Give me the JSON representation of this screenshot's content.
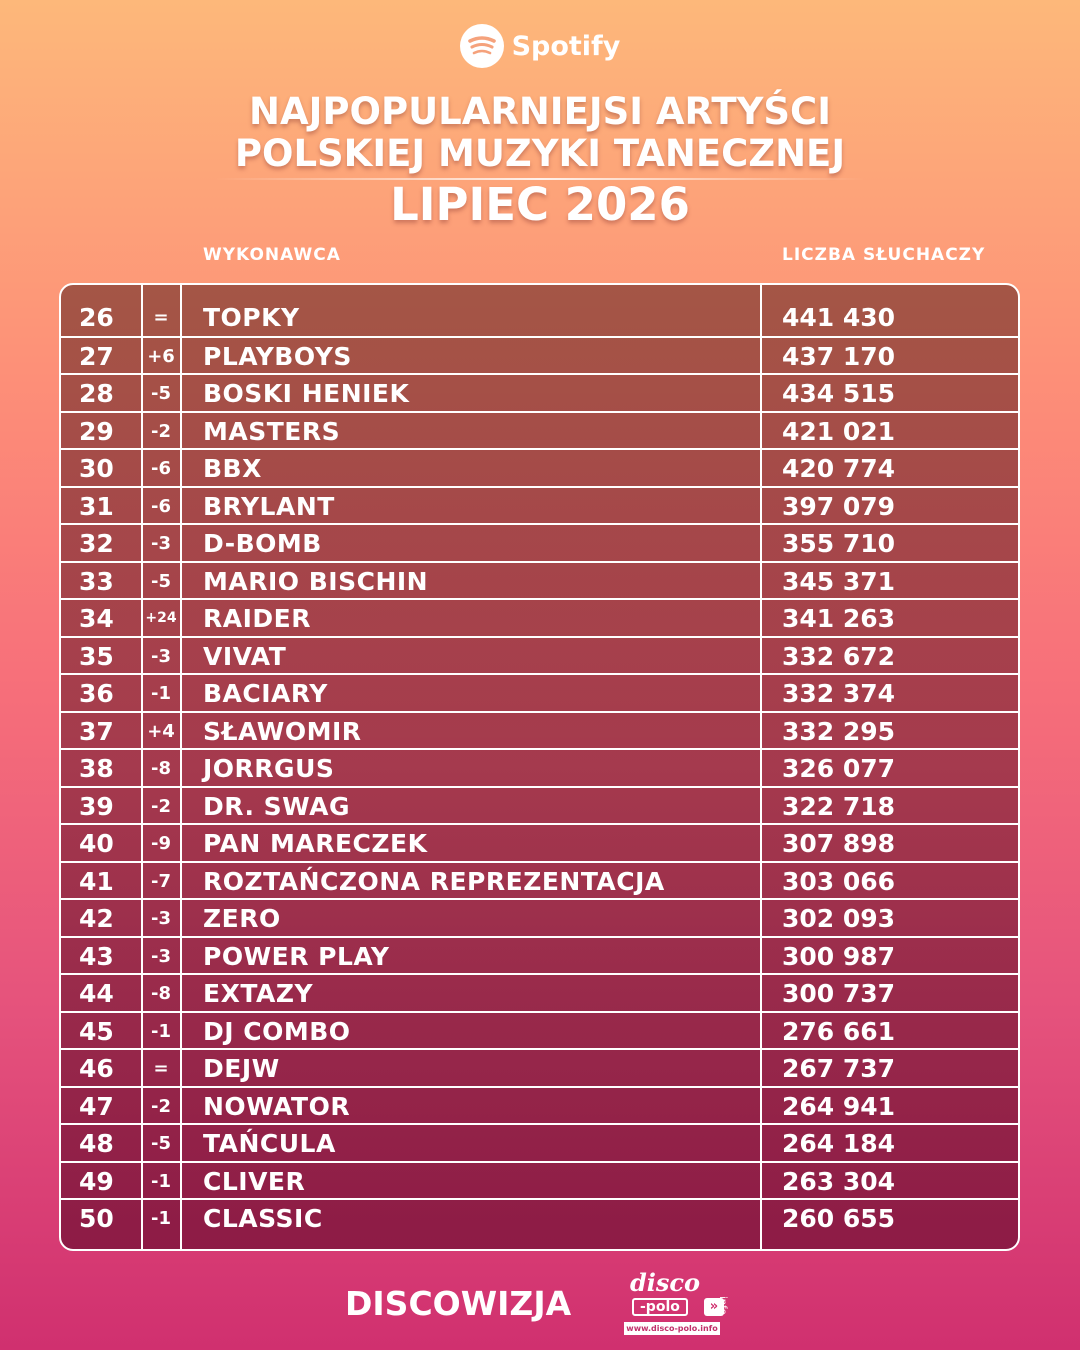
{
  "brand": {
    "name": "Spotify",
    "icon": "spotify-icon"
  },
  "header": {
    "title_line1": "NAJPOPULARNIEJSI ARTYŚCI",
    "title_line2": "POLSKIEJ MUZYKI TANECZNEJ",
    "subtitle": "LIPIEC 2026"
  },
  "columns": {
    "artist": "WYKONAWCA",
    "listeners": "LICZBA SŁUCHACZY"
  },
  "rows": [
    {
      "rank": "26",
      "change": "=",
      "artist": "TOPKY",
      "listeners": "441 430"
    },
    {
      "rank": "27",
      "change": "+6",
      "artist": "PLAYBOYS",
      "listeners": "437 170"
    },
    {
      "rank": "28",
      "change": "-5",
      "artist": "BOSKI HENIEK",
      "listeners": "434 515"
    },
    {
      "rank": "29",
      "change": "-2",
      "artist": "MASTERS",
      "listeners": "421 021"
    },
    {
      "rank": "30",
      "change": "-6",
      "artist": "BBX",
      "listeners": "420 774"
    },
    {
      "rank": "31",
      "change": "-6",
      "artist": "BRYLANT",
      "listeners": "397 079"
    },
    {
      "rank": "32",
      "change": "-3",
      "artist": "D-BOMB",
      "listeners": "355 710"
    },
    {
      "rank": "33",
      "change": "-5",
      "artist": "MARIO BISCHIN",
      "listeners": "345 371"
    },
    {
      "rank": "34",
      "change": "+24",
      "artist": "RAIDER",
      "listeners": "341 263"
    },
    {
      "rank": "35",
      "change": "-3",
      "artist": "VIVAT",
      "listeners": "332 672"
    },
    {
      "rank": "36",
      "change": "-1",
      "artist": "BACIARY",
      "listeners": "332 374"
    },
    {
      "rank": "37",
      "change": "+4",
      "artist": "SŁAWOMIR",
      "listeners": "332 295"
    },
    {
      "rank": "38",
      "change": "-8",
      "artist": "JORRGUS",
      "listeners": "326 077"
    },
    {
      "rank": "39",
      "change": "-2",
      "artist": "DR. SWAG",
      "listeners": "322 718"
    },
    {
      "rank": "40",
      "change": "-9",
      "artist": "PAN MARECZEK",
      "listeners": "307 898"
    },
    {
      "rank": "41",
      "change": "-7",
      "artist": "ROZTAŃCZONA REPREZENTACJA",
      "listeners": "303 066"
    },
    {
      "rank": "42",
      "change": "-3",
      "artist": "ZERO",
      "listeners": "302 093"
    },
    {
      "rank": "43",
      "change": "-3",
      "artist": "POWER PLAY",
      "listeners": "300 987"
    },
    {
      "rank": "44",
      "change": "-8",
      "artist": "EXTAZY",
      "listeners": "300 737"
    },
    {
      "rank": "45",
      "change": "-1",
      "artist": "DJ COMBO",
      "listeners": "276 661"
    },
    {
      "rank": "46",
      "change": "=",
      "artist": "DEJW",
      "listeners": "267 737"
    },
    {
      "rank": "47",
      "change": "-2",
      "artist": "NOWATOR",
      "listeners": "264 941"
    },
    {
      "rank": "48",
      "change": "-5",
      "artist": "TAŃCULA",
      "listeners": "264 184"
    },
    {
      "rank": "49",
      "change": "-1",
      "artist": "CLIVER",
      "listeners": "263 304"
    },
    {
      "rank": "50",
      "change": "-1",
      "artist": "CLASSIC",
      "listeners": "260 655"
    }
  ],
  "footer": {
    "left_brand": "DISCOWIZJA",
    "logo_word1": "disco",
    "logo_word2": "-polo",
    "logo_arrow": "»",
    "logo_suffix": "info",
    "logo_url": "www.disco-polo.info"
  },
  "colors": {
    "gradient_top": "#fdb87a",
    "gradient_bottom": "#d0306f",
    "text": "#ffffff"
  }
}
